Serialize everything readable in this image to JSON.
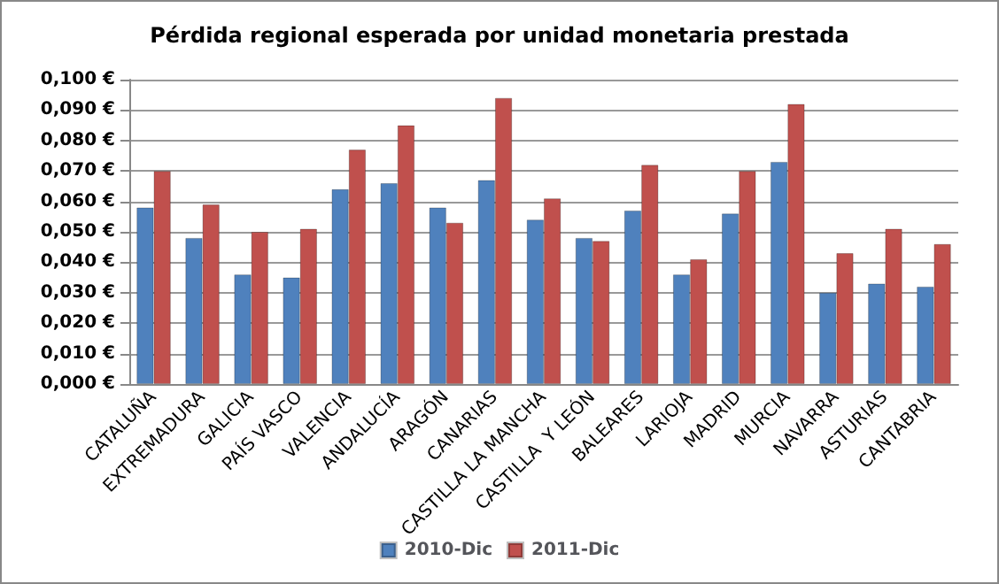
{
  "chart_data": {
    "type": "bar",
    "title": "Pérdida regional esperada por unidad monetaria prestada",
    "categories": [
      "CATALUÑA",
      "EXTREMADURA",
      "GALICIA",
      "PAÍS VASCO",
      "VALENCIA",
      "ANDALUCÍA",
      "ARAGÓN",
      "CANARIAS",
      "CASTILLA LA MANCHA",
      "CASTILLA  Y LEÓN",
      "BALEARES",
      "LARIOJA",
      "MADRID",
      "MURCIA",
      "NAVARRA",
      "ASTURIAS",
      "CANTABRIA"
    ],
    "series": [
      {
        "name": "2010-Dic",
        "color": "#4f81bd",
        "values": [
          0.058,
          0.048,
          0.036,
          0.035,
          0.064,
          0.066,
          0.058,
          0.067,
          0.054,
          0.048,
          0.057,
          0.036,
          0.056,
          0.073,
          0.03,
          0.033,
          0.032
        ]
      },
      {
        "name": "2011-Dic",
        "color": "#c0504d",
        "values": [
          0.07,
          0.059,
          0.05,
          0.051,
          0.077,
          0.085,
          0.053,
          0.094,
          0.061,
          0.047,
          0.072,
          0.041,
          0.07,
          0.092,
          0.043,
          0.051,
          0.046
        ]
      }
    ],
    "ylim": [
      0,
      0.1
    ],
    "yticks": [
      {
        "value": 0,
        "label": "0,000 €"
      },
      {
        "value": 0.01,
        "label": "0,010 €"
      },
      {
        "value": 0.02,
        "label": "0,020 €"
      },
      {
        "value": 0.03,
        "label": "0,030 €"
      },
      {
        "value": 0.04,
        "label": "0,040 €"
      },
      {
        "value": 0.05,
        "label": "0,050 €"
      },
      {
        "value": 0.06,
        "label": "0,060 €"
      },
      {
        "value": 0.07,
        "label": "0,070 €"
      },
      {
        "value": 0.08,
        "label": "0,080 €"
      },
      {
        "value": 0.09,
        "label": "0,090 €"
      },
      {
        "value": 0.1,
        "label": "0,100 €"
      }
    ],
    "grid": "y",
    "legend": "bottom"
  }
}
